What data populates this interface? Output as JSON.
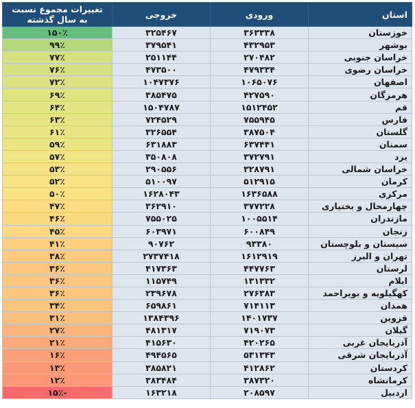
{
  "headers": {
    "province": "استان",
    "inbound": "ورودی",
    "outbound": "خروجی",
    "change": "تغییرات مجموع نسبت به سال گذشته"
  },
  "rows": [
    {
      "province": "خوزستان",
      "inbound": "۳۶۳۳۳۸",
      "outbound": "۳۲۵۴۶۷",
      "change": "۱۵۰٪",
      "color": "#63be7b"
    },
    {
      "province": "بوشهر",
      "inbound": "۴۳۲۹۵۳",
      "outbound": "۳۷۹۵۴۱",
      "change": "۹۹٪",
      "color": "#b4d97b"
    },
    {
      "province": "خراسان جنوبی",
      "inbound": "۲۷۰۴۸۲",
      "outbound": "۲۵۱۱۴۴",
      "change": "۷۷٪",
      "color": "#d3e27f"
    },
    {
      "province": "خراسان رضوی",
      "inbound": "۴۷۹۳۳۴",
      "outbound": "۴۷۳۵۰۰",
      "change": "۷۶٪",
      "color": "#d5e27f"
    },
    {
      "province": "اصفهان",
      "inbound": "۱۰۶۵۰۷۶",
      "outbound": "۱۰۴۷۳۷۶",
      "change": "۷۲٪",
      "color": "#dbe380"
    },
    {
      "province": "هرمزگان",
      "inbound": "۴۲۷۵۹۰",
      "outbound": "۳۸۵۴۷۵",
      "change": "۶۹٪",
      "color": "#dfe480"
    },
    {
      "province": "قم",
      "inbound": "۱۵۱۲۴۵۲",
      "outbound": "۱۵۰۴۷۸۷",
      "change": "۶۴٪",
      "color": "#e5e581"
    },
    {
      "province": "فارس",
      "inbound": "۷۵۵۹۴۵",
      "outbound": "۷۲۴۵۲۹",
      "change": "۶۳٪",
      "color": "#e7e582"
    },
    {
      "province": "گلستان",
      "inbound": "۳۸۷۵۰۴",
      "outbound": "۳۲۶۵۵۴",
      "change": "۶۱٪",
      "color": "#eae582"
    },
    {
      "province": "سمنان",
      "inbound": "۶۳۷۴۴۱",
      "outbound": "۶۳۱۸۸۳",
      "change": "۵۹٪",
      "color": "#ede582"
    },
    {
      "province": "یزد",
      "inbound": "۳۷۲۷۹۱",
      "outbound": "۳۵۰۸۰۸",
      "change": "۵۷٪",
      "color": "#f0e583"
    },
    {
      "province": "خراسان شمالی",
      "inbound": "۳۲۸۷۹۱",
      "outbound": "۲۹۰۵۵۶",
      "change": "۵۳٪",
      "color": "#f5e383"
    },
    {
      "province": "کرمان",
      "inbound": "۵۱۲۹۱۵",
      "outbound": "۵۱۰۰۹۷",
      "change": "۵۲٪",
      "color": "#f7e383"
    },
    {
      "province": "مرکزی",
      "inbound": "۱۶۳۶۵۸۸",
      "outbound": "۱۶۲۸۰۴۳",
      "change": "۵۰٪",
      "color": "#fae283"
    },
    {
      "province": "چهارمحال و بختیاری",
      "inbound": "۳۷۷۲۲۸",
      "outbound": "۳۶۲۹۱۰",
      "change": "۴۷٪",
      "color": "#fbdc81"
    },
    {
      "province": "مازندران",
      "inbound": "۱۰۰۵۵۱۴",
      "outbound": "۷۵۵۰۲۵",
      "change": "۴۶٪",
      "color": "#fcda80"
    },
    {
      "province": "زنجان",
      "inbound": "۶۰۰۸۴۹",
      "outbound": "۶۰۳۹۷۱",
      "change": "۴۵٪",
      "color": "#fcd880"
    },
    {
      "province": "سیستان و بلوچستان",
      "inbound": "۹۳۳۸۰",
      "outbound": "۹۰۷۶۲",
      "change": "۴۱٪",
      "color": "#fcd07e"
    },
    {
      "province": "تهران و البرز",
      "inbound": "۱۶۱۲۹۱۹",
      "outbound": "۲۷۳۷۴۱۸",
      "change": "۳۸٪",
      "color": "#fccb7d"
    },
    {
      "province": "لرستان",
      "inbound": "۴۴۷۷۶۳",
      "outbound": "۴۱۷۳۶۳",
      "change": "۳۶٪",
      "color": "#fcc77c"
    },
    {
      "province": "ایلام",
      "inbound": "۱۳۱۳۳۲",
      "outbound": "۱۱۵۷۴۹",
      "change": "۳۶٪",
      "color": "#fcc77c"
    },
    {
      "province": "کهگیلویه و بویراحمد",
      "inbound": "۲۷۶۳۸۳",
      "outbound": "۲۳۹۶۷۸",
      "change": "۳۶٪",
      "color": "#fcc77c"
    },
    {
      "province": "همدان",
      "inbound": "۷۱۴۱۱۳",
      "outbound": "۶۵۹۸۶۱",
      "change": "۳۴٪",
      "color": "#fbc47b"
    },
    {
      "province": "قزوین",
      "inbound": "۱۴۰۱۷۳۷",
      "outbound": "۱۳۸۴۳۹۶",
      "change": "۳۱٪",
      "color": "#fbbe7b"
    },
    {
      "province": "گیلان",
      "inbound": "۷۱۹۰۷۳",
      "outbound": "۴۸۱۳۱۷",
      "change": "۲۷٪",
      "color": "#fbb57a"
    },
    {
      "province": "آذربایجان غربی",
      "inbound": "۴۲۰۲۶۵",
      "outbound": "۴۱۵۶۳۰",
      "change": "۲۱٪",
      "color": "#fba978"
    },
    {
      "province": "آذربایجان شرقی",
      "inbound": "۵۳۱۳۴۳",
      "outbound": "۴۹۴۵۶۵",
      "change": "۱۶٪",
      "color": "#fa9f76"
    },
    {
      "province": "کردستان",
      "inbound": "۴۱۲۸۶۲",
      "outbound": "۳۸۵۸۲۱",
      "change": "۱۳٪",
      "color": "#fa9975"
    },
    {
      "province": "کرمانشاه",
      "inbound": "۳۸۷۳۲۰",
      "outbound": "۳۸۳۴۸۴",
      "change": "۱۲٪",
      "color": "#fa9775"
    },
    {
      "province": "اردبیل",
      "inbound": "۲۰۸۵۹۷",
      "outbound": "۱۶۳۲۱۸",
      "change": "-۱۵٪",
      "color": "#f8696b"
    }
  ]
}
